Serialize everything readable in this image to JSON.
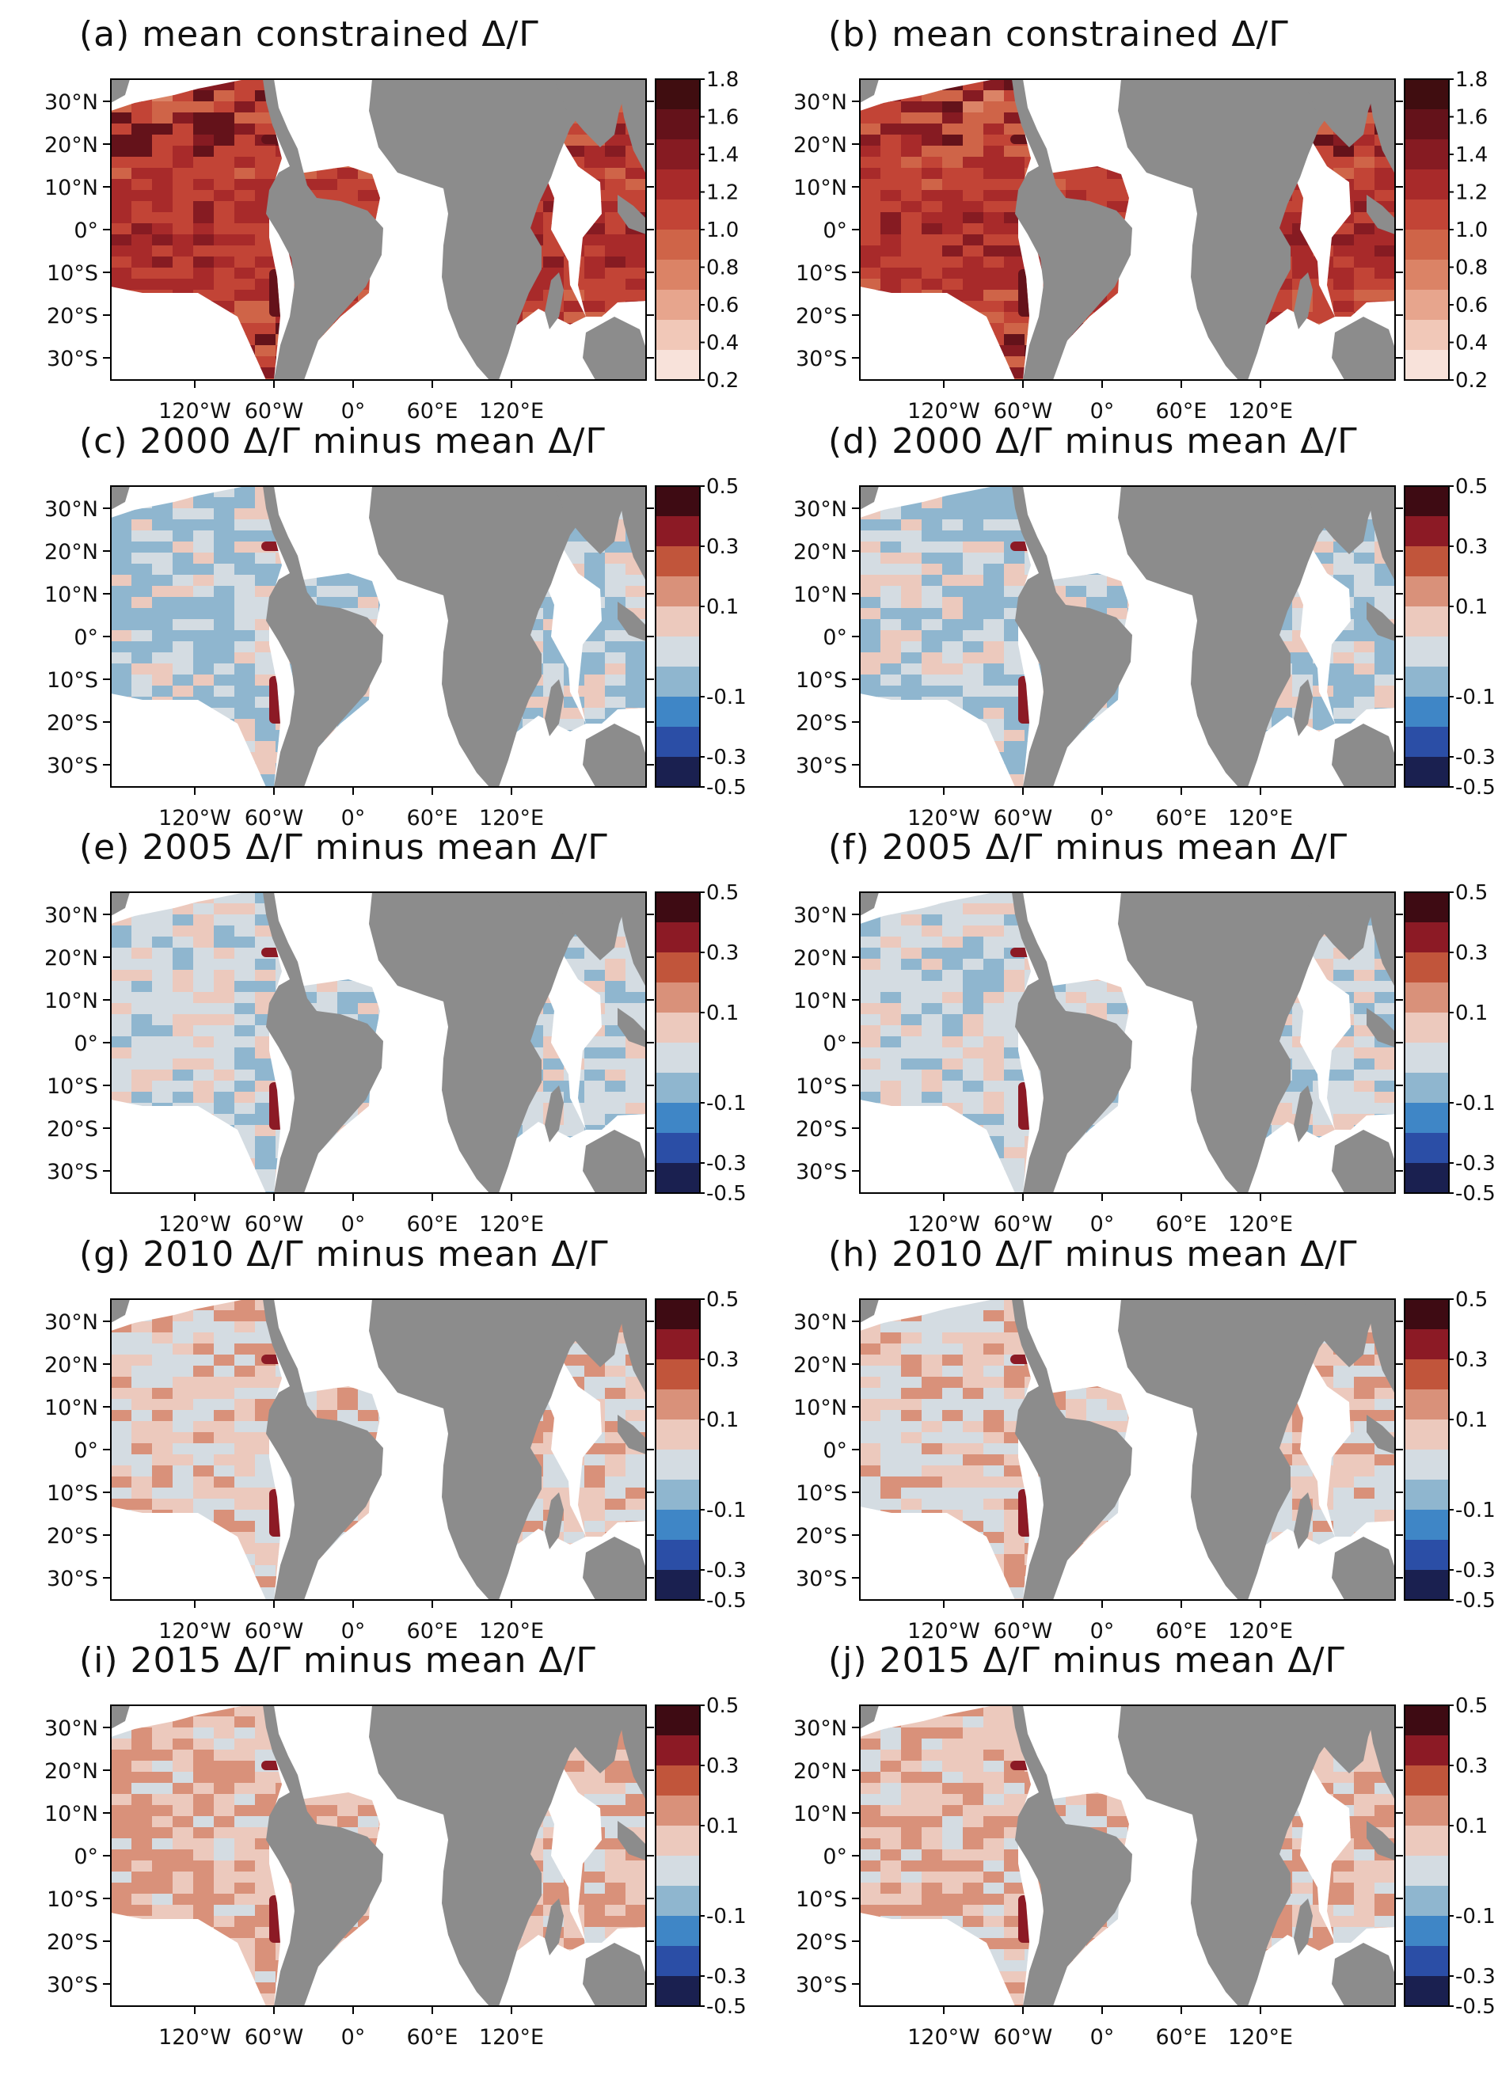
{
  "figure": {
    "land_color": "#8c8c8c",
    "map_lat_labels": [
      "30°N",
      "20°N",
      "10°N",
      "0°",
      "10°S",
      "20°S",
      "30°S"
    ],
    "map_lon_labels": [
      "120°W",
      "60°W",
      "0°",
      "60°E",
      "120°E"
    ]
  },
  "chart_data": [
    {
      "type": "heatmap",
      "id": "a",
      "title": "(a)  mean constrained Δ/Γ",
      "colorbar": {
        "labels": [
          "1.8",
          "1.6",
          "1.4",
          "1.2",
          "1.0",
          "0.8",
          "0.6",
          "0.4",
          "0.2"
        ],
        "colors": [
          "#400d10",
          "#64121a",
          "#861b22",
          "#a82a2a",
          "#c24436",
          "#cf6448",
          "#db8366",
          "#e7a58d",
          "#f1c8b8",
          "#f8e2da"
        ]
      },
      "map_style": "mean"
    },
    {
      "type": "heatmap",
      "id": "b",
      "title": "(b)  mean constrained Δ/Γ",
      "colorbar": {
        "labels": [
          "1.8",
          "1.6",
          "1.4",
          "1.2",
          "1.0",
          "0.8",
          "0.6",
          "0.4",
          "0.2"
        ],
        "colors": [
          "#400d10",
          "#64121a",
          "#861b22",
          "#a82a2a",
          "#c24436",
          "#cf6448",
          "#db8366",
          "#e7a58d",
          "#f1c8b8",
          "#f8e2da"
        ]
      },
      "map_style": "mean"
    },
    {
      "type": "heatmap",
      "id": "c",
      "title": "(c) 2000 Δ/Γ minus mean Δ/Γ",
      "colorbar": {
        "labels": [
          "0.5",
          "0.3",
          "0.1",
          "-0.1",
          "-0.3",
          "-0.5"
        ],
        "colors": [
          "#3e0b13",
          "#8c1a25",
          "#c1553b",
          "#d9917a",
          "#ecc9bd",
          "#d4dce2",
          "#8fb6cf",
          "#3f86c6",
          "#2b4ea6",
          "#1a2050"
        ]
      },
      "map_style": "anom_blue"
    },
    {
      "type": "heatmap",
      "id": "d",
      "title": "(d) 2000 Δ/Γ minus mean Δ/Γ",
      "colorbar": {
        "labels": [
          "0.5",
          "0.3",
          "0.1",
          "-0.1",
          "-0.3",
          "-0.5"
        ],
        "colors": [
          "#3e0b13",
          "#8c1a25",
          "#c1553b",
          "#d9917a",
          "#ecc9bd",
          "#d4dce2",
          "#8fb6cf",
          "#3f86c6",
          "#2b4ea6",
          "#1a2050"
        ]
      },
      "map_style": "anom_blue"
    },
    {
      "type": "heatmap",
      "id": "e",
      "title": "(e) 2005 Δ/Γ minus mean Δ/Γ",
      "colorbar": {
        "labels": [
          "0.5",
          "0.3",
          "0.1",
          "-0.1",
          "-0.3",
          "-0.5"
        ],
        "colors": [
          "#3e0b13",
          "#8c1a25",
          "#c1553b",
          "#d9917a",
          "#ecc9bd",
          "#d4dce2",
          "#8fb6cf",
          "#3f86c6",
          "#2b4ea6",
          "#1a2050"
        ]
      },
      "map_style": "anom_mixed"
    },
    {
      "type": "heatmap",
      "id": "f",
      "title": "(f) 2005 Δ/Γ minus mean Δ/Γ",
      "colorbar": {
        "labels": [
          "0.5",
          "0.3",
          "0.1",
          "-0.1",
          "-0.3",
          "-0.5"
        ],
        "colors": [
          "#3e0b13",
          "#8c1a25",
          "#c1553b",
          "#d9917a",
          "#ecc9bd",
          "#d4dce2",
          "#8fb6cf",
          "#3f86c6",
          "#2b4ea6",
          "#1a2050"
        ]
      },
      "map_style": "anom_mixed"
    },
    {
      "type": "heatmap",
      "id": "g",
      "title": "(g) 2010 Δ/Γ minus mean Δ/Γ",
      "colorbar": {
        "labels": [
          "0.5",
          "0.3",
          "0.1",
          "-0.1",
          "-0.3",
          "-0.5"
        ],
        "colors": [
          "#3e0b13",
          "#8c1a25",
          "#c1553b",
          "#d9917a",
          "#ecc9bd",
          "#d4dce2",
          "#8fb6cf",
          "#3f86c6",
          "#2b4ea6",
          "#1a2050"
        ]
      },
      "map_style": "anom_light"
    },
    {
      "type": "heatmap",
      "id": "h",
      "title": "(h) 2010 Δ/Γ minus mean Δ/Γ",
      "colorbar": {
        "labels": [
          "0.5",
          "0.3",
          "0.1",
          "-0.1",
          "-0.3",
          "-0.5"
        ],
        "colors": [
          "#3e0b13",
          "#8c1a25",
          "#c1553b",
          "#d9917a",
          "#ecc9bd",
          "#d4dce2",
          "#8fb6cf",
          "#3f86c6",
          "#2b4ea6",
          "#1a2050"
        ]
      },
      "map_style": "anom_light"
    },
    {
      "type": "heatmap",
      "id": "i",
      "title": "(i) 2015 Δ/Γ minus mean Δ/Γ",
      "colorbar": {
        "labels": [
          "0.5",
          "0.3",
          "0.1",
          "-0.1",
          "-0.3",
          "-0.5"
        ],
        "colors": [
          "#3e0b13",
          "#8c1a25",
          "#c1553b",
          "#d9917a",
          "#ecc9bd",
          "#d4dce2",
          "#8fb6cf",
          "#3f86c6",
          "#2b4ea6",
          "#1a2050"
        ]
      },
      "map_style": "anom_red"
    },
    {
      "type": "heatmap",
      "id": "j",
      "title": "(j) 2015 Δ/Γ minus mean Δ/Γ",
      "colorbar": {
        "labels": [
          "0.5",
          "0.3",
          "0.1",
          "-0.1",
          "-0.3",
          "-0.5"
        ],
        "colors": [
          "#3e0b13",
          "#8c1a25",
          "#c1553b",
          "#d9917a",
          "#ecc9bd",
          "#d4dce2",
          "#8fb6cf",
          "#3f86c6",
          "#2b4ea6",
          "#1a2050"
        ]
      },
      "map_style": "anom_red"
    }
  ]
}
